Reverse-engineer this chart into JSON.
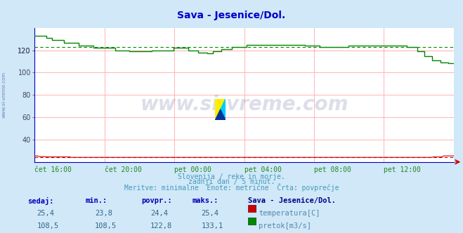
{
  "title": "Sava - Jesenice/Dol.",
  "title_color": "#0000cc",
  "bg_color": "#d0e8f8",
  "plot_bg_color": "#ffffff",
  "grid_color": "#ffaaaa",
  "ylabel_color": "#444466",
  "watermark_text": "www.si-vreme.com",
  "watermark_color": "#1a2a6c",
  "watermark_alpha": 0.15,
  "left_label": "www.si-vreme.com",
  "left_label_color": "#4466aa",
  "subtitle_lines": [
    "Slovenija / reke in morje.",
    "zadnji dan / 5 minut.",
    "Meritve: minimalne  Enote: metrične  Črta: povprečje"
  ],
  "subtitle_color": "#4499bb",
  "ylim_min": 20,
  "ylim_max": 140,
  "yticks": [
    40,
    60,
    80,
    100,
    120
  ],
  "xtick_labels": [
    "čet 16:00",
    "čet 20:00",
    "pet 00:00",
    "pet 04:00",
    "pet 08:00",
    "pet 12:00"
  ],
  "xtick_color": "#228822",
  "n_points": 288,
  "temp_color": "#cc0000",
  "flow_color": "#008800",
  "avg_temp": 24.4,
  "avg_flow": 122.8,
  "temp_min": 23.8,
  "temp_max": 25.4,
  "temp_now": 25.4,
  "flow_min": 108.5,
  "flow_max": 133.1,
  "flow_now": 108.5,
  "flow_avg": 122.8,
  "legend_title": "Sava - Jesenice/Dol.",
  "legend_title_color": "#000088",
  "legend_label_color": "#5588aa",
  "table_header_color": "#0000bb",
  "table_value_color": "#336688",
  "axis_color": "#0000cc",
  "spine_color": "#8888aa"
}
